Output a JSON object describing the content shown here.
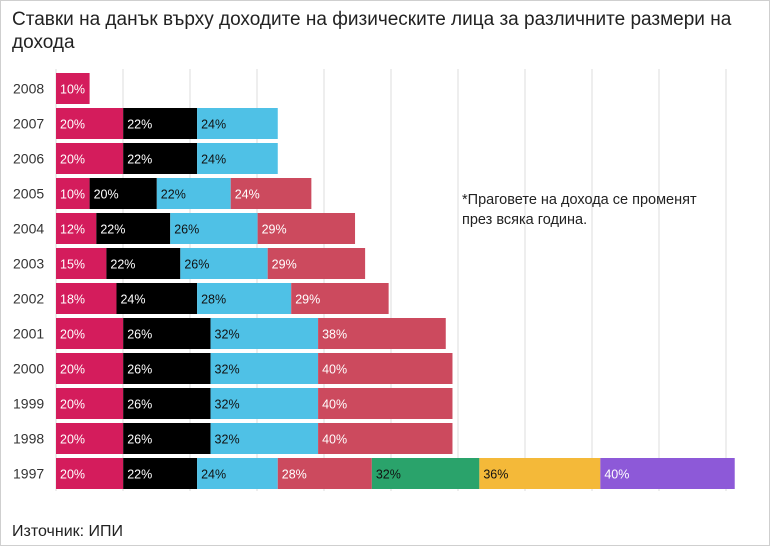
{
  "title": "Ставки на данък върху доходите на физическите лица за различните размери на дохода",
  "source": "Източник: ИПИ",
  "note": "*Праговете на дохода се променят през всяка година.",
  "colors": {
    "brackets": [
      "#d41c5c",
      "#000000",
      "#4fc1e6",
      "#cc4a5e",
      "#2aa36b",
      "#f4b939",
      "#8d59d8"
    ],
    "label_text": [
      "#ffffff",
      "#ffffff",
      "#111111",
      "#ffffff",
      "#111111",
      "#111111",
      "#ffffff"
    ],
    "grid": "#dddddd"
  },
  "chart_data": {
    "type": "bar",
    "orientation": "horizontal",
    "stacked": true,
    "title": "Ставки на данък върху доходите на физическите лица за различните размери на дохода",
    "xlabel": "",
    "ylabel": "",
    "grid": true,
    "categories": [
      "2008",
      "2007",
      "2006",
      "2005",
      "2004",
      "2003",
      "2002",
      "2001",
      "2000",
      "1999",
      "1998",
      "1997"
    ],
    "values": [
      [
        10
      ],
      [
        20,
        22,
        24
      ],
      [
        20,
        22,
        24
      ],
      [
        10,
        20,
        22,
        24
      ],
      [
        12,
        22,
        26,
        29
      ],
      [
        15,
        22,
        26,
        29
      ],
      [
        18,
        24,
        28,
        29
      ],
      [
        20,
        26,
        32,
        38
      ],
      [
        20,
        26,
        32,
        40
      ],
      [
        20,
        26,
        32,
        40
      ],
      [
        20,
        26,
        32,
        40
      ],
      [
        20,
        22,
        24,
        28,
        32,
        36,
        40
      ]
    ],
    "value_suffix": "%"
  }
}
